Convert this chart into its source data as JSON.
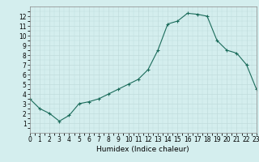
{
  "x": [
    0,
    1,
    2,
    3,
    4,
    5,
    6,
    7,
    8,
    9,
    10,
    11,
    12,
    13,
    14,
    15,
    16,
    17,
    18,
    19,
    20,
    21,
    22,
    23
  ],
  "y": [
    3.5,
    2.5,
    2.0,
    1.2,
    1.8,
    3.0,
    3.2,
    3.5,
    4.0,
    4.5,
    5.0,
    5.5,
    6.5,
    8.5,
    11.2,
    11.5,
    12.3,
    12.2,
    12.0,
    9.5,
    8.5,
    8.2,
    7.0,
    4.5
  ],
  "xlabel": "Humidex (Indice chaleur)",
  "xlim": [
    0,
    23
  ],
  "ylim": [
    0,
    13
  ],
  "yticks": [
    1,
    2,
    3,
    4,
    5,
    6,
    7,
    8,
    9,
    10,
    11,
    12
  ],
  "xticks": [
    0,
    1,
    2,
    3,
    4,
    5,
    6,
    7,
    8,
    9,
    10,
    11,
    12,
    13,
    14,
    15,
    16,
    17,
    18,
    19,
    20,
    21,
    22,
    23
  ],
  "line_color": "#1a6b5a",
  "marker": "+",
  "bg_color": "#d4eeee",
  "grid_major_color": "#c0dcdc",
  "grid_minor_color": "#e0f0f0",
  "tick_fontsize": 5.5,
  "label_fontsize": 6.5
}
